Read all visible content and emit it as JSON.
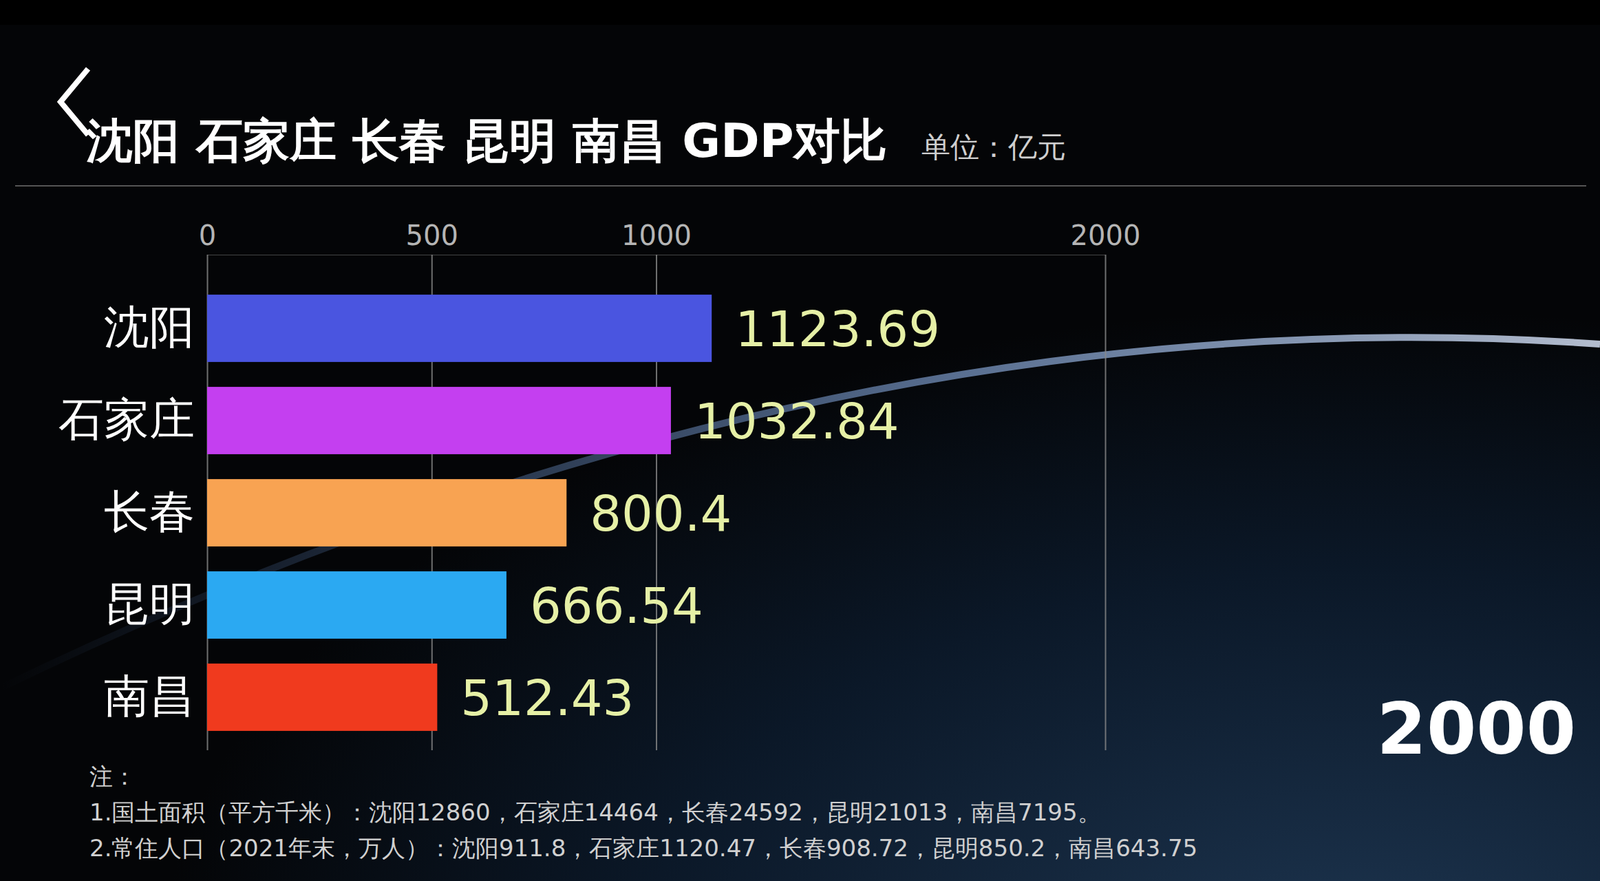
{
  "chart_data": {
    "type": "bar",
    "title": "沈阳 石家庄 长春 昆明 南昌 GDP对比",
    "orientation": "horizontal",
    "categories": [
      "沈阳",
      "石家庄",
      "长春",
      "昆明",
      "南昌"
    ],
    "values": [
      1123.69,
      1032.84,
      800.4,
      666.54,
      512.43
    ],
    "colors": [
      "#4a55e0",
      "#c43ff0",
      "#f8a352",
      "#2ba9f2",
      "#f03a1e"
    ],
    "xlim": [
      0,
      2000
    ],
    "xticks": [
      0,
      500,
      1000,
      2000
    ],
    "grid": true,
    "data_labels": true,
    "annotations": {
      "unit": "单位：亿元",
      "year": "2000",
      "notes": [
        "注：",
        "1.国土面积（平方千米）：沈阳12860，石家庄14464，长春24592，昆明21013，南昌7195。",
        "2.常住人口（2021年末，万人）：沈阳911.8，石家庄1120.47，长春908.72，昆明850.2，南昌643.75"
      ]
    }
  }
}
